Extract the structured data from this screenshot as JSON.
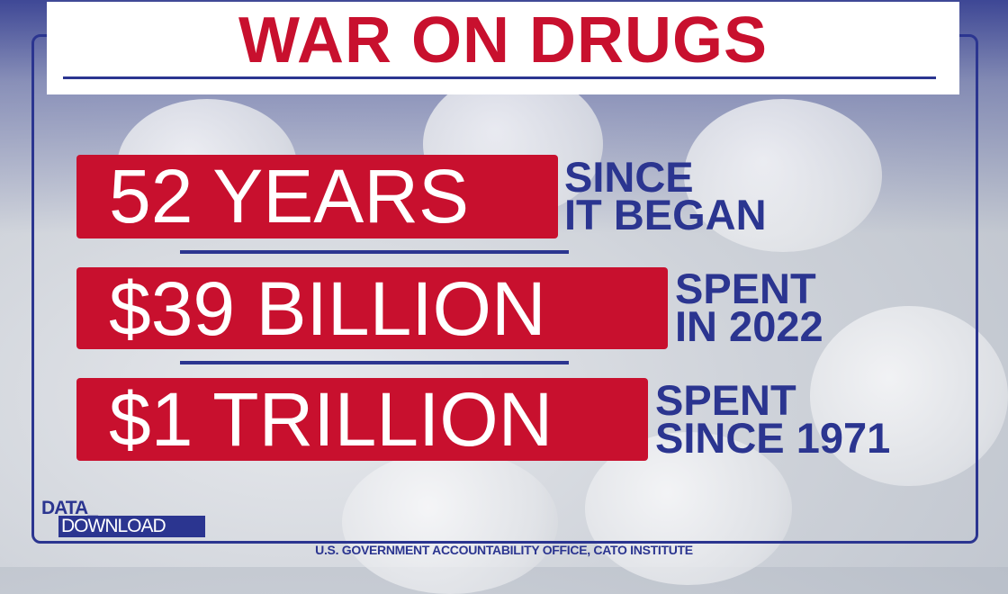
{
  "title": "WAR ON DRUGS",
  "stats": [
    {
      "value": "52 YEARS",
      "line1": "SINCE",
      "line2": "IT BEGAN"
    },
    {
      "value": "$39 BILLION",
      "line1": "SPENT",
      "line2": "IN 2022"
    },
    {
      "value": "$1 TRILLION",
      "line1": "SPENT",
      "line2": "SINCE 1971"
    }
  ],
  "logo": {
    "line1": "DATA_",
    "line2": "DOWNLOAD"
  },
  "source": "U.S. GOVERNMENT ACCOUNTABILITY OFFICE, CATO INSTITUTE",
  "colors": {
    "red": "#c8102e",
    "blue": "#2b3590"
  }
}
